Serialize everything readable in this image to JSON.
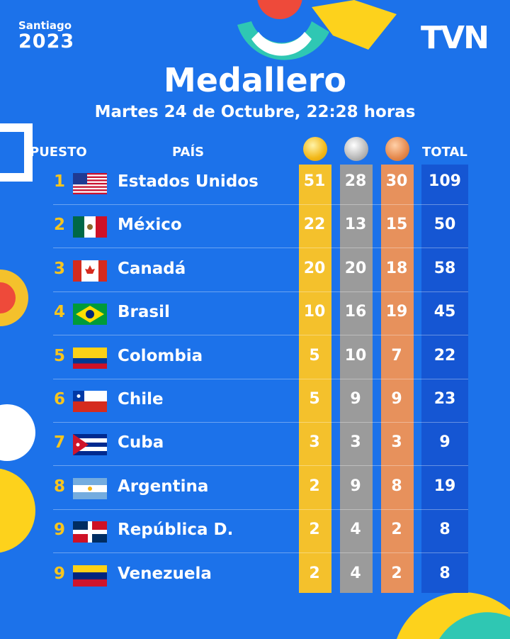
{
  "brand": {
    "event": "Santiago",
    "year": "2023",
    "broadcaster": "TVN"
  },
  "header": {
    "title": "Medallero",
    "subtitle": "Martes 24 de Octubre, 22:28 horas"
  },
  "columns": {
    "rank": "PUESTO",
    "country": "PAÍS",
    "total": "TOTAL",
    "medal_icons": [
      "gold-medal",
      "silver-medal",
      "bronze-medal"
    ]
  },
  "colors": {
    "background": "#1c72ea",
    "gold": "#f4c12c",
    "silver": "#9b9b9b",
    "bronze": "#e7915c",
    "total": "#1556d3",
    "rank": "#f7c51e"
  },
  "rows": [
    {
      "rank": "1",
      "country": "Estados Unidos",
      "flag": "usa",
      "gold": "51",
      "silver": "28",
      "bronze": "30",
      "total": "109"
    },
    {
      "rank": "2",
      "country": "México",
      "flag": "mexico",
      "gold": "22",
      "silver": "13",
      "bronze": "15",
      "total": "50"
    },
    {
      "rank": "3",
      "country": "Canadá",
      "flag": "canada",
      "gold": "20",
      "silver": "20",
      "bronze": "18",
      "total": "58"
    },
    {
      "rank": "4",
      "country": "Brasil",
      "flag": "brazil",
      "gold": "10",
      "silver": "16",
      "bronze": "19",
      "total": "45"
    },
    {
      "rank": "5",
      "country": "Colombia",
      "flag": "colombia",
      "gold": "5",
      "silver": "10",
      "bronze": "7",
      "total": "22"
    },
    {
      "rank": "6",
      "country": "Chile",
      "flag": "chile",
      "gold": "5",
      "silver": "9",
      "bronze": "9",
      "total": "23"
    },
    {
      "rank": "7",
      "country": "Cuba",
      "flag": "cuba",
      "gold": "3",
      "silver": "3",
      "bronze": "3",
      "total": "9"
    },
    {
      "rank": "8",
      "country": "Argentina",
      "flag": "argentina",
      "gold": "2",
      "silver": "9",
      "bronze": "8",
      "total": "19"
    },
    {
      "rank": "9",
      "country": "República D.",
      "flag": "dominican-republic",
      "gold": "2",
      "silver": "4",
      "bronze": "2",
      "total": "8"
    },
    {
      "rank": "9",
      "country": "Venezuela",
      "flag": "venezuela",
      "gold": "2",
      "silver": "4",
      "bronze": "2",
      "total": "8"
    }
  ]
}
